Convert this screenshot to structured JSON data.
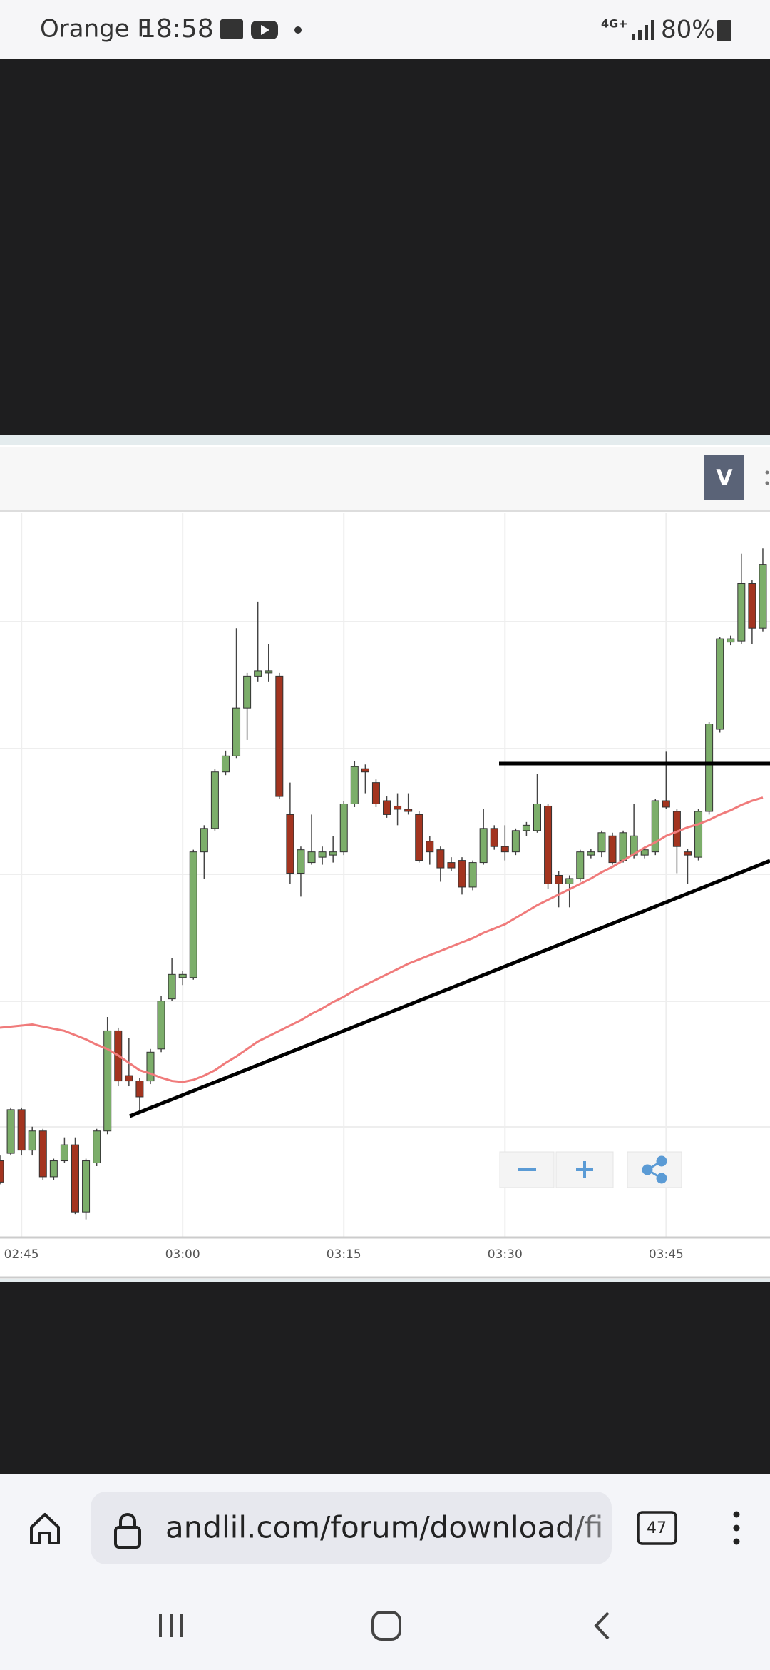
{
  "status_bar": {
    "carrier": "Orange F",
    "time": "18:58",
    "network": "4G+",
    "battery": "80%"
  },
  "toolbar": {
    "button": "V"
  },
  "chart_data": {
    "type": "candlestick",
    "categories": [
      null,
      null,
      "02:45",
      null,
      null,
      null,
      null,
      null,
      null,
      null,
      null,
      null,
      null,
      null,
      null,
      null,
      null,
      "03:00",
      null,
      null,
      null,
      null,
      null,
      null,
      null,
      null,
      null,
      null,
      null,
      null,
      null,
      null,
      "03:15",
      null,
      null,
      null,
      null,
      null,
      null,
      null,
      null,
      null,
      null,
      null,
      null,
      null,
      null,
      "03:30",
      null,
      null,
      null,
      null,
      null,
      null,
      null,
      null,
      null,
      null,
      null,
      null,
      null,
      null,
      "03:45",
      null,
      null,
      null,
      null,
      null,
      null,
      null,
      null,
      null
    ],
    "open": [
      72,
      79,
      120,
      82,
      100,
      57,
      72,
      87,
      24,
      70,
      100,
      194,
      152,
      147,
      147,
      177,
      224,
      244,
      244,
      362,
      384,
      437,
      452,
      497,
      527,
      530,
      527,
      397,
      342,
      352,
      357,
      359,
      362,
      407,
      440,
      427,
      410,
      405,
      402,
      397,
      372,
      364,
      352,
      354,
      329,
      352,
      384,
      367,
      362,
      382,
      382,
      405,
      340,
      332,
      337,
      359,
      362,
      377,
      354,
      359,
      359,
      362,
      410,
      400,
      362,
      357,
      400,
      477,
      559,
      560,
      614,
      572
    ],
    "high": [
      77,
      122,
      122,
      104,
      102,
      74,
      94,
      94,
      74,
      102,
      207,
      197,
      187,
      150,
      177,
      227,
      262,
      250,
      364,
      387,
      440,
      457,
      572,
      530,
      597,
      557,
      530,
      427,
      367,
      397,
      367,
      377,
      410,
      447,
      444,
      430,
      414,
      417,
      417,
      400,
      377,
      367,
      357,
      357,
      354,
      402,
      387,
      387,
      384,
      390,
      435,
      407,
      344,
      340,
      364,
      365,
      382,
      380,
      382,
      407,
      367,
      412,
      456,
      402,
      365,
      402,
      484,
      564,
      565,
      642,
      617,
      647
    ],
    "low": [
      50,
      77,
      77,
      77,
      54,
      54,
      70,
      22,
      17,
      67,
      97,
      142,
      142,
      117,
      144,
      174,
      222,
      237,
      242,
      337,
      382,
      434,
      450,
      467,
      522,
      522,
      412,
      332,
      320,
      350,
      350,
      352,
      359,
      404,
      417,
      404,
      394,
      387,
      397,
      352,
      350,
      334,
      344,
      322,
      326,
      350,
      364,
      354,
      359,
      377,
      380,
      327,
      310,
      310,
      334,
      356,
      357,
      350,
      352,
      356,
      356,
      359,
      402,
      342,
      332,
      354,
      397,
      474,
      556,
      557,
      557,
      569
    ],
    "close": [
      52,
      120,
      82,
      100,
      57,
      72,
      87,
      24,
      72,
      100,
      194,
      147,
      147,
      132,
      174,
      222,
      247,
      247,
      362,
      384,
      437,
      452,
      497,
      527,
      532,
      532,
      414,
      342,
      364,
      362,
      362,
      362,
      407,
      442,
      437,
      407,
      397,
      402,
      400,
      354,
      362,
      347,
      347,
      329,
      352,
      384,
      367,
      362,
      382,
      387,
      407,
      332,
      332,
      337,
      362,
      362,
      380,
      352,
      380,
      377,
      364,
      410,
      404,
      367,
      359,
      400,
      482,
      562,
      562,
      614,
      572,
      632
    ],
    "up_color": "#7cae6a",
    "down_color": "#a3341f",
    "overlay": {
      "color": "#f07b7b",
      "values": [
        197,
        198,
        199,
        200,
        198,
        196,
        194,
        190,
        186,
        181,
        177,
        171,
        164,
        157,
        154,
        150,
        147,
        146,
        148,
        152,
        157,
        164,
        170,
        177,
        184,
        189,
        194,
        199,
        204,
        210,
        215,
        221,
        226,
        232,
        237,
        242,
        247,
        252,
        257,
        261,
        265,
        269,
        273,
        277,
        281,
        286,
        290,
        294,
        300,
        306,
        312,
        317,
        322,
        327,
        332,
        337,
        343,
        348,
        354,
        360,
        366,
        371,
        377,
        381,
        385,
        388,
        392,
        397,
        401,
        406,
        410,
        413
      ]
    },
    "ylim": [
      0,
      680
    ]
  },
  "browser": {
    "url": "andlil.com/forum/download/file",
    "tabs": "47"
  }
}
